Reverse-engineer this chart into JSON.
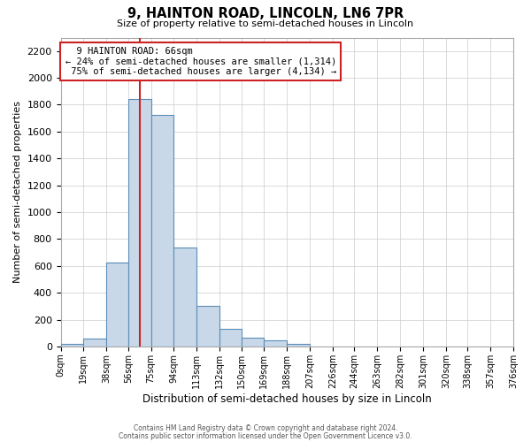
{
  "title": "9, HAINTON ROAD, LINCOLN, LN6 7PR",
  "subtitle": "Size of property relative to semi-detached houses in Lincoln",
  "xlabel": "Distribution of semi-detached houses by size in Lincoln",
  "ylabel": "Number of semi-detached properties",
  "bar_values": [
    20,
    60,
    625,
    1840,
    1725,
    740,
    305,
    130,
    65,
    45,
    20,
    0,
    0,
    0,
    0,
    0,
    0,
    0,
    0
  ],
  "bin_labels": [
    "0sqm",
    "19sqm",
    "38sqm",
    "56sqm",
    "75sqm",
    "94sqm",
    "113sqm",
    "132sqm",
    "150sqm",
    "169sqm",
    "188sqm",
    "207sqm",
    "226sqm",
    "244sqm",
    "263sqm",
    "282sqm",
    "301sqm",
    "320sqm",
    "338sqm",
    "357sqm",
    "376sqm"
  ],
  "bin_edges": [
    0,
    19,
    38,
    56,
    75,
    94,
    113,
    132,
    150,
    169,
    188,
    207,
    226,
    244,
    263,
    282,
    301,
    320,
    338,
    357,
    376
  ],
  "bar_color": "#c8d8e8",
  "bar_edge_color": "#5b8db8",
  "grid_color": "#cccccc",
  "bg_color": "#ffffff",
  "annotation_box_edge": "#cc2222",
  "annotation_line_color": "#cc2222",
  "property_line_x": 66,
  "property_label": "9 HAINTON ROAD: 66sqm",
  "smaller_pct": "24%",
  "smaller_count": "1,314",
  "larger_pct": "75%",
  "larger_count": "4,134",
  "ylim": [
    0,
    2300
  ],
  "yticks": [
    0,
    200,
    400,
    600,
    800,
    1000,
    1200,
    1400,
    1600,
    1800,
    2000,
    2200
  ],
  "footer1": "Contains HM Land Registry data © Crown copyright and database right 2024.",
  "footer2": "Contains public sector information licensed under the Open Government Licence v3.0."
}
